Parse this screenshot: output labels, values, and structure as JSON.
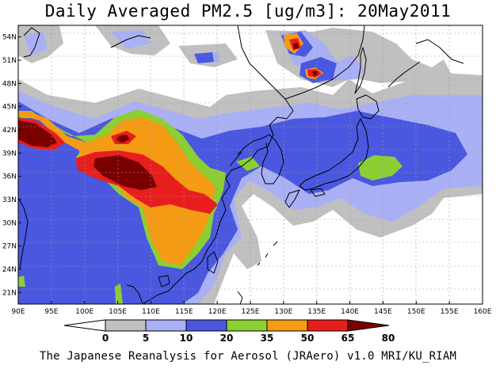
{
  "title": "Daily Averaged PM2.5 [ug/m3]: 20May2011",
  "footer": "The Japanese Reanalysis for Aerosol (JRAero) v1.0 MRI/KU_RIAM",
  "map": {
    "lon_range": [
      90,
      160
    ],
    "lat_range": [
      19.5,
      55.5
    ],
    "lon_ticks": [
      "90E",
      "95E",
      "100E",
      "105E",
      "110E",
      "115E",
      "120E",
      "125E",
      "130E",
      "135E",
      "140E",
      "145E",
      "150E",
      "155E",
      "160E"
    ],
    "lat_ticks": [
      "54N",
      "51N",
      "48N",
      "45N",
      "42N",
      "39N",
      "36N",
      "33N",
      "30N",
      "27N",
      "24N",
      "21N"
    ],
    "grid": true
  },
  "colorbar": {
    "labels": [
      "0",
      "5",
      "10",
      "20",
      "35",
      "50",
      "65",
      "80"
    ],
    "colors": [
      "#ffffff",
      "#c0c0c0",
      "#aab0f5",
      "#4a58e0",
      "#8ccf32",
      "#f59b14",
      "#e81e1e",
      "#7a0000"
    ]
  }
}
